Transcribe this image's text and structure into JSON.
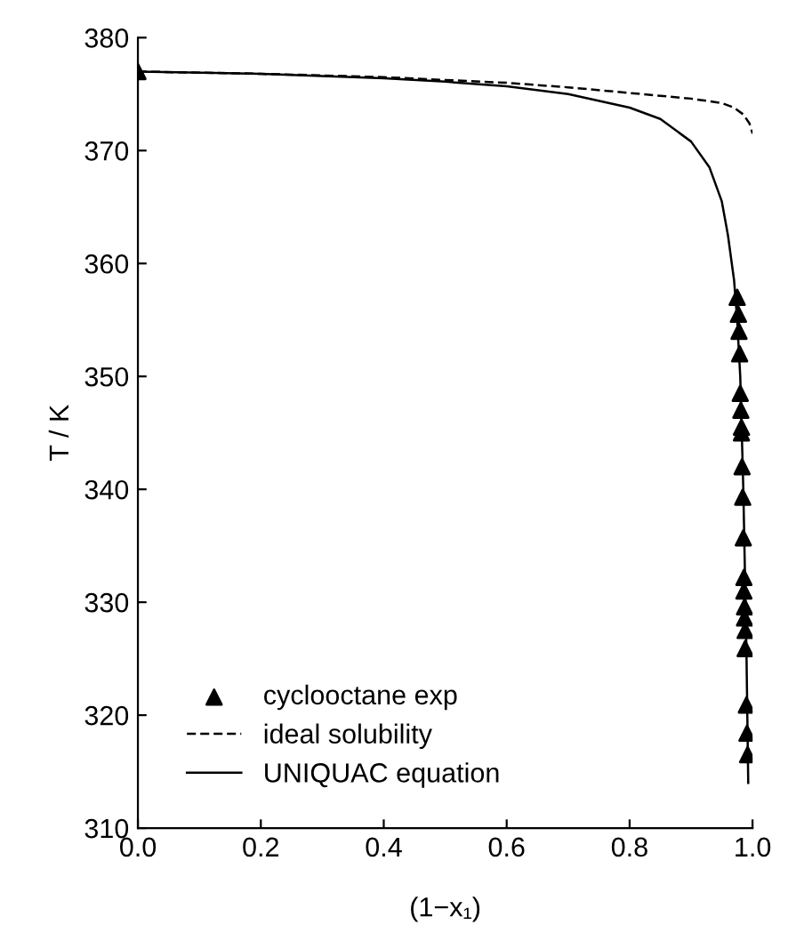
{
  "chart_data": {
    "type": "scatter",
    "xlabel": "(1−x₁)",
    "ylabel": "T / K",
    "xlim": [
      0.0,
      1.0
    ],
    "ylim": [
      310,
      380
    ],
    "xticks": [
      {
        "value": 0,
        "label": "0.0"
      },
      0.2,
      0.4,
      0.6,
      0.8,
      {
        "value": 1,
        "label": "1.0"
      }
    ],
    "yticks": [
      310,
      320,
      330,
      340,
      350,
      360,
      370,
      380
    ],
    "grid": false,
    "legend": "bottom left",
    "series": [
      {
        "name": "cyclooctane exp",
        "marker": "triangle",
        "color": "#000000",
        "x": [
          0.0,
          0.975,
          0.977,
          0.978,
          0.979,
          0.98,
          0.981,
          0.982,
          0.982,
          0.983,
          0.984,
          0.985,
          0.986,
          0.986,
          0.987,
          0.987,
          0.988,
          0.988,
          0.99,
          0.991,
          0.992
        ],
        "values": [
          377.0,
          357.0,
          355.5,
          354.0,
          352.0,
          348.5,
          347.0,
          345.5,
          345.0,
          342.0,
          339.3,
          335.7,
          332.2,
          331.0,
          329.6,
          328.6,
          327.5,
          325.9,
          320.9,
          318.4,
          316.5
        ]
      },
      {
        "name": "ideal solubility",
        "type": "line",
        "line_style": "dashed",
        "color": "#000000",
        "x": [
          0.0,
          0.2,
          0.4,
          0.6,
          0.7,
          0.8,
          0.9,
          0.95,
          0.97,
          0.985,
          0.995,
          1.0
        ],
        "values": [
          377.0,
          376.8,
          376.5,
          376.0,
          375.6,
          375.1,
          374.6,
          374.2,
          373.8,
          373.2,
          372.4,
          371.5
        ]
      },
      {
        "name": "UNIQUAC equation",
        "type": "line",
        "line_style": "solid",
        "color": "#000000",
        "x": [
          0.0,
          0.2,
          0.4,
          0.5,
          0.6,
          0.7,
          0.8,
          0.85,
          0.9,
          0.93,
          0.95,
          0.96,
          0.97,
          0.975,
          0.98,
          0.985,
          0.99,
          0.993
        ],
        "values": [
          377.0,
          376.8,
          376.4,
          376.1,
          375.7,
          375.0,
          373.8,
          372.8,
          370.8,
          368.5,
          365.5,
          362.5,
          358.5,
          355.0,
          350.0,
          340.0,
          326.0,
          314.0
        ]
      }
    ]
  }
}
